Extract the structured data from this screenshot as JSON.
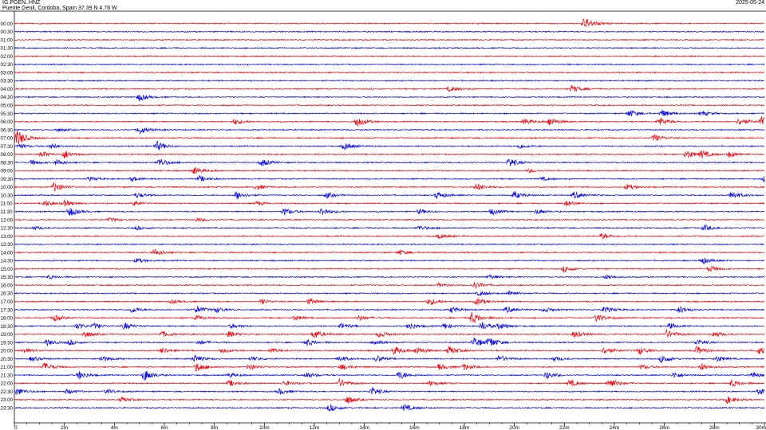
{
  "header": {
    "station": "IG.PGEN..HNZ",
    "location": "Puente Genil, Cordoba, Spain  37.39 N 4.78 W",
    "date": "2025-05-24"
  },
  "chart_data": {
    "type": "line",
    "title": "",
    "xlabel": "",
    "ylabel": "",
    "x_unit": "minutes",
    "xlim": [
      0,
      30
    ],
    "x_ticks": [
      {
        "value": 0,
        "label": "0"
      },
      {
        "value": 2,
        "label": "2m"
      },
      {
        "value": 4,
        "label": "4m"
      },
      {
        "value": 6,
        "label": "6m"
      },
      {
        "value": 8,
        "label": "8m"
      },
      {
        "value": 10,
        "label": "10m"
      },
      {
        "value": 12,
        "label": "12m"
      },
      {
        "value": 14,
        "label": "14m"
      },
      {
        "value": 16,
        "label": "16m"
      },
      {
        "value": 18,
        "label": "18m"
      },
      {
        "value": 20,
        "label": "20m"
      },
      {
        "value": 22,
        "label": "22m"
      },
      {
        "value": 24,
        "label": "24m"
      },
      {
        "value": 26,
        "label": "26m"
      },
      {
        "value": 28,
        "label": "28m"
      },
      {
        "value": 30,
        "label": "30m"
      }
    ],
    "colors": {
      "red": "#e8111a",
      "blue": "#1010e0"
    },
    "rows": [
      {
        "label": "00:00",
        "color": "red",
        "events": [
          [
            22.8,
            1.0
          ]
        ]
      },
      {
        "label": "00:30",
        "color": "blue",
        "events": []
      },
      {
        "label": "01:00",
        "color": "red",
        "events": []
      },
      {
        "label": "01:30",
        "color": "blue",
        "events": []
      },
      {
        "label": "02:00",
        "color": "red",
        "events": []
      },
      {
        "label": "02:30",
        "color": "blue",
        "events": []
      },
      {
        "label": "03:00",
        "color": "red",
        "events": []
      },
      {
        "label": "03:30",
        "color": "blue",
        "events": []
      },
      {
        "label": "04:00",
        "color": "red",
        "events": [
          [
            17.4,
            0.4
          ],
          [
            22.3,
            0.6
          ]
        ]
      },
      {
        "label": "04:30",
        "color": "blue",
        "events": [
          [
            5.0,
            0.6
          ]
        ]
      },
      {
        "label": "05:00",
        "color": "red",
        "events": []
      },
      {
        "label": "05:30",
        "color": "blue",
        "events": [
          [
            24.6,
            0.6
          ],
          [
            25.9,
            0.6
          ],
          [
            27.5,
            0.4
          ]
        ]
      },
      {
        "label": "06:00",
        "color": "red",
        "events": [
          [
            8.8,
            0.5
          ],
          [
            13.7,
            0.9
          ],
          [
            20.4,
            0.5
          ],
          [
            21.4,
            0.7
          ],
          [
            25.8,
            0.7
          ],
          [
            29.0,
            0.6
          ],
          [
            29.9,
            0.8
          ]
        ]
      },
      {
        "label": "06:30",
        "color": "blue",
        "events": [
          [
            1.7,
            0.3
          ],
          [
            5.0,
            0.7
          ]
        ]
      },
      {
        "label": "07:00",
        "color": "red",
        "events": [
          [
            0.1,
            1.4
          ],
          [
            25.6,
            0.6
          ]
        ]
      },
      {
        "label": "07:30",
        "color": "blue",
        "events": [
          [
            0.2,
            0.4
          ],
          [
            1.5,
            0.4
          ],
          [
            5.7,
            0.8
          ],
          [
            13.2,
            0.6
          ],
          [
            20.2,
            0.4
          ]
        ]
      },
      {
        "label": "08:00",
        "color": "red",
        "events": [
          [
            1.1,
            0.5
          ],
          [
            2.0,
            0.7
          ],
          [
            26.9,
            0.7
          ],
          [
            27.5,
            0.6
          ],
          [
            28.6,
            0.5
          ]
        ]
      },
      {
        "label": "08:30",
        "color": "blue",
        "events": [
          [
            0.7,
            0.4
          ],
          [
            1.7,
            0.5
          ],
          [
            5.8,
            0.7
          ],
          [
            9.9,
            0.6
          ],
          [
            19.8,
            0.8
          ]
        ]
      },
      {
        "label": "09:00",
        "color": "red",
        "events": [
          [
            7.2,
            0.6
          ],
          [
            20.6,
            0.3
          ]
        ]
      },
      {
        "label": "09:30",
        "color": "blue",
        "events": [
          [
            3.0,
            0.3
          ],
          [
            4.7,
            0.4
          ],
          [
            7.4,
            0.5
          ],
          [
            21.1,
            0.3
          ],
          [
            30.0,
            0.6
          ]
        ]
      },
      {
        "label": "10:00",
        "color": "red",
        "events": [
          [
            1.6,
            0.8
          ],
          [
            9.7,
            0.4
          ],
          [
            18.5,
            0.6
          ],
          [
            24.5,
            0.5
          ]
        ]
      },
      {
        "label": "10:30",
        "color": "blue",
        "events": [
          [
            4.9,
            0.4
          ],
          [
            8.9,
            0.7
          ],
          [
            12.5,
            0.5
          ],
          [
            16.9,
            0.6
          ],
          [
            20.0,
            0.6
          ],
          [
            22.4,
            0.6
          ],
          [
            28.7,
            0.7
          ]
        ]
      },
      {
        "label": "11:00",
        "color": "red",
        "events": [
          [
            1.2,
            0.5
          ],
          [
            2.0,
            0.5
          ],
          [
            4.8,
            0.4
          ],
          [
            9.7,
            0.3
          ],
          [
            22.1,
            0.5
          ]
        ]
      },
      {
        "label": "11:30",
        "color": "blue",
        "events": [
          [
            2.2,
            0.8
          ],
          [
            10.8,
            0.6
          ],
          [
            12.3,
            0.7
          ],
          [
            16.2,
            0.4
          ],
          [
            19.1,
            0.5
          ],
          [
            20.9,
            0.4
          ]
        ]
      },
      {
        "label": "12:00",
        "color": "red",
        "events": [
          [
            3.8,
            0.3
          ],
          [
            7.3,
            0.3
          ]
        ]
      },
      {
        "label": "12:30",
        "color": "blue",
        "events": [
          [
            0.8,
            0.3
          ],
          [
            4.9,
            0.3
          ],
          [
            16.2,
            0.4
          ],
          [
            27.6,
            0.5
          ]
        ]
      },
      {
        "label": "13:00",
        "color": "red",
        "events": [
          [
            17.0,
            0.4
          ],
          [
            23.5,
            0.5
          ]
        ]
      },
      {
        "label": "13:30",
        "color": "blue",
        "events": []
      },
      {
        "label": "14:00",
        "color": "red",
        "events": [
          [
            5.6,
            0.6
          ],
          [
            15.4,
            0.4
          ]
        ]
      },
      {
        "label": "14:30",
        "color": "blue",
        "events": [
          [
            4.9,
            0.4
          ],
          [
            27.5,
            0.6
          ]
        ]
      },
      {
        "label": "15:00",
        "color": "red",
        "events": [
          [
            22.0,
            0.5
          ],
          [
            27.8,
            0.5
          ]
        ]
      },
      {
        "label": "15:30",
        "color": "blue",
        "events": [
          [
            1.4,
            0.3
          ],
          [
            19.0,
            0.4
          ],
          [
            23.7,
            0.4
          ]
        ]
      },
      {
        "label": "16:00",
        "color": "red",
        "events": [
          [
            17.0,
            0.3
          ],
          [
            18.4,
            0.6
          ]
        ]
      },
      {
        "label": "16:30",
        "color": "blue",
        "events": [
          [
            18.6,
            0.4
          ],
          [
            19.8,
            0.4
          ]
        ]
      },
      {
        "label": "17:00",
        "color": "red",
        "events": [
          [
            6.3,
            0.3
          ],
          [
            9.9,
            0.4
          ],
          [
            11.8,
            0.5
          ],
          [
            16.6,
            0.6
          ],
          [
            18.5,
            0.6
          ]
        ]
      },
      {
        "label": "17:30",
        "color": "blue",
        "events": [
          [
            4.7,
            0.5
          ],
          [
            7.3,
            0.6
          ],
          [
            8.1,
            0.4
          ],
          [
            17.5,
            0.5
          ],
          [
            19.7,
            0.5
          ],
          [
            21.2,
            0.4
          ],
          [
            23.6,
            0.5
          ],
          [
            26.6,
            0.6
          ]
        ]
      },
      {
        "label": "18:00",
        "color": "red",
        "events": [
          [
            1.6,
            0.5
          ],
          [
            7.3,
            0.4
          ],
          [
            11.2,
            0.4
          ],
          [
            13.8,
            0.4
          ],
          [
            18.3,
            1.0
          ],
          [
            23.3,
            0.7
          ]
        ]
      },
      {
        "label": "18:30",
        "color": "blue",
        "events": [
          [
            2.5,
            0.5
          ],
          [
            3.2,
            0.4
          ],
          [
            4.4,
            0.6
          ],
          [
            8.7,
            0.4
          ],
          [
            13.1,
            0.5
          ],
          [
            15.8,
            0.6
          ],
          [
            17.2,
            0.5
          ],
          [
            18.7,
            0.7
          ],
          [
            19.4,
            0.5
          ],
          [
            26.2,
            0.5
          ]
        ]
      },
      {
        "label": "19:00",
        "color": "red",
        "events": [
          [
            2.8,
            0.6
          ],
          [
            5.9,
            0.5
          ],
          [
            8.6,
            0.5
          ],
          [
            12.0,
            0.7
          ],
          [
            14.6,
            0.5
          ],
          [
            22.4,
            0.6
          ],
          [
            26.1,
            0.7
          ],
          [
            28.0,
            0.5
          ]
        ]
      },
      {
        "label": "19:30",
        "color": "blue",
        "events": [
          [
            1.3,
            0.5
          ],
          [
            2.2,
            0.4
          ],
          [
            7.4,
            0.4
          ],
          [
            11.7,
            0.6
          ],
          [
            14.4,
            0.5
          ],
          [
            18.4,
            0.9
          ],
          [
            19.0,
            0.8
          ],
          [
            27.3,
            0.5
          ]
        ]
      },
      {
        "label": "20:00",
        "color": "red",
        "events": [
          [
            0.4,
            0.4
          ],
          [
            5.9,
            0.5
          ],
          [
            8.3,
            0.4
          ],
          [
            10.3,
            0.3
          ],
          [
            15.2,
            0.7
          ],
          [
            16.1,
            0.6
          ],
          [
            17.4,
            0.7
          ],
          [
            23.6,
            0.6
          ],
          [
            25.0,
            0.6
          ],
          [
            27.3,
            0.7
          ],
          [
            29.8,
            0.6
          ]
        ]
      },
      {
        "label": "20:30",
        "color": "blue",
        "events": [
          [
            0.7,
            0.4
          ],
          [
            3.5,
            0.5
          ],
          [
            7.2,
            0.6
          ],
          [
            9.5,
            0.4
          ],
          [
            13.0,
            0.5
          ],
          [
            14.5,
            0.5
          ],
          [
            19.4,
            0.6
          ],
          [
            21.6,
            0.4
          ],
          [
            25.9,
            0.7
          ],
          [
            28.1,
            0.5
          ]
        ]
      },
      {
        "label": "21:00",
        "color": "red",
        "events": [
          [
            1.2,
            0.7
          ],
          [
            7.3,
            0.8
          ],
          [
            9.4,
            0.5
          ],
          [
            13.1,
            0.5
          ],
          [
            17.0,
            0.5
          ],
          [
            18.0,
            0.5
          ],
          [
            25.1,
            0.4
          ],
          [
            27.5,
            0.6
          ]
        ]
      },
      {
        "label": "21:30",
        "color": "blue",
        "events": [
          [
            2.6,
            0.7
          ],
          [
            5.2,
            1.0
          ],
          [
            8.6,
            0.4
          ],
          [
            11.7,
            0.5
          ],
          [
            15.4,
            0.7
          ],
          [
            21.3,
            0.6
          ],
          [
            26.4,
            0.5
          ],
          [
            29.5,
            0.5
          ]
        ]
      },
      {
        "label": "22:00",
        "color": "red",
        "events": [
          [
            8.6,
            0.5
          ],
          [
            10.8,
            0.4
          ],
          [
            13.0,
            0.7
          ],
          [
            16.6,
            0.4
          ],
          [
            22.2,
            0.6
          ],
          [
            23.8,
            0.9
          ],
          [
            28.7,
            0.6
          ]
        ]
      },
      {
        "label": "22:30",
        "color": "blue",
        "events": [
          [
            0.1,
            0.6
          ],
          [
            2.1,
            0.4
          ],
          [
            3.7,
            0.4
          ],
          [
            10.6,
            0.5
          ],
          [
            14.3,
            0.7
          ],
          [
            29.8,
            0.6
          ]
        ]
      },
      {
        "label": "23:00",
        "color": "red",
        "events": [
          [
            4.3,
            0.4
          ],
          [
            13.3,
            0.7
          ],
          [
            28.5,
            0.6
          ]
        ]
      },
      {
        "label": "23:30",
        "color": "blue",
        "events": [
          [
            12.6,
            0.6
          ],
          [
            15.6,
            0.6
          ]
        ]
      }
    ]
  }
}
